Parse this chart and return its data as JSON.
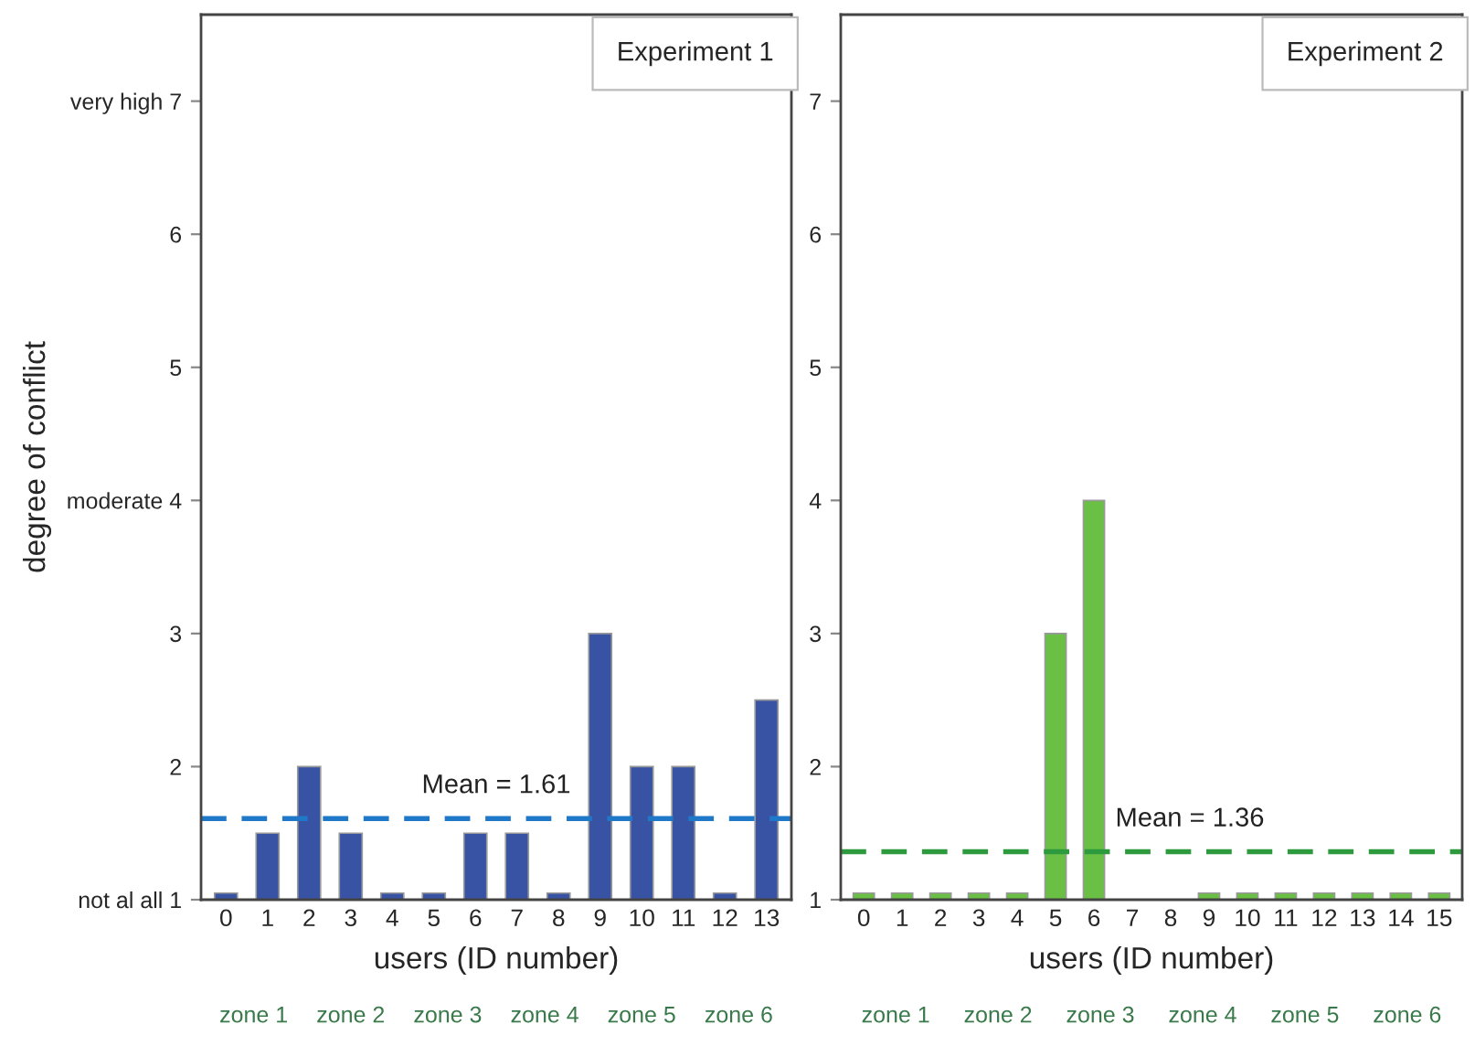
{
  "chart_data": [
    {
      "type": "bar",
      "title": "Experiment 1",
      "xlabel": "users (ID number)",
      "ylabel": "degree of conflict",
      "categories": [
        "0",
        "1",
        "2",
        "3",
        "4",
        "5",
        "6",
        "7",
        "8",
        "9",
        "10",
        "11",
        "12",
        "13"
      ],
      "series": [
        {
          "color": "#3953a4",
          "values": [
            1.05,
            1.5,
            2,
            1.5,
            1.05,
            1.05,
            1.5,
            1.5,
            1.05,
            3,
            2,
            2,
            1.05,
            2.5
          ]
        }
      ],
      "ylim": [
        1,
        7.65
      ],
      "yticks": [
        {
          "value": 1,
          "label": "not al all 1"
        },
        2,
        3,
        {
          "value": 4,
          "label": "moderate 4"
        },
        5,
        6,
        {
          "value": 7,
          "label": "very high 7"
        }
      ],
      "ref_lines": [
        {
          "axis": "y",
          "value": 1.61,
          "label": "Mean = 1.61",
          "color": "#1f78c8",
          "line_style": "dashed"
        }
      ],
      "annotations": [
        "zone 1",
        "zone 2",
        "zone 3",
        "zone 4",
        "zone 5",
        "zone 6"
      ],
      "grid": false,
      "legend": false
    },
    {
      "type": "bar",
      "title": "Experiment 2",
      "xlabel": "users (ID number)",
      "categories": [
        "0",
        "1",
        "2",
        "3",
        "4",
        "5",
        "6",
        "7",
        "8",
        "9",
        "10",
        "11",
        "12",
        "13",
        "14",
        "15"
      ],
      "series": [
        {
          "color": "#6abf45",
          "values": [
            1.05,
            1.05,
            1.05,
            1.05,
            1.05,
            3,
            4,
            null,
            null,
            1.05,
            1.05,
            1.05,
            1.05,
            1.05,
            1.05,
            1.05
          ]
        }
      ],
      "ylim": [
        1,
        7.65
      ],
      "yticks": [
        1,
        2,
        3,
        4,
        5,
        6,
        7
      ],
      "ref_lines": [
        {
          "axis": "y",
          "value": 1.36,
          "label": "Mean = 1.36",
          "color": "#2e9a3e",
          "line_style": "dashed"
        }
      ],
      "annotations": [
        "zone 1",
        "zone 2",
        "zone 3",
        "zone 4",
        "zone 5",
        "zone 6"
      ],
      "grid": false,
      "legend": false
    }
  ]
}
